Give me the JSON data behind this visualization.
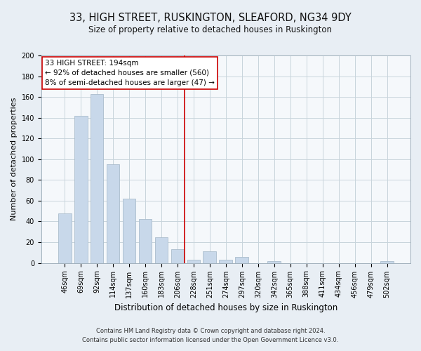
{
  "title": "33, HIGH STREET, RUSKINGTON, SLEAFORD, NG34 9DY",
  "subtitle": "Size of property relative to detached houses in Ruskington",
  "xlabel": "Distribution of detached houses by size in Ruskington",
  "ylabel": "Number of detached properties",
  "bar_labels": [
    "46sqm",
    "69sqm",
    "92sqm",
    "114sqm",
    "137sqm",
    "160sqm",
    "183sqm",
    "206sqm",
    "228sqm",
    "251sqm",
    "274sqm",
    "297sqm",
    "320sqm",
    "342sqm",
    "365sqm",
    "388sqm",
    "411sqm",
    "434sqm",
    "456sqm",
    "479sqm",
    "502sqm"
  ],
  "bar_values": [
    48,
    142,
    163,
    95,
    62,
    42,
    25,
    13,
    3,
    11,
    3,
    6,
    0,
    2,
    0,
    0,
    0,
    0,
    0,
    0,
    2
  ],
  "bar_color": "#c8d8ea",
  "bar_edge_color": "#aabccc",
  "vline_x_bar_index": 7.42,
  "vline_color": "#cc0000",
  "annotation_line1": "33 HIGH STREET: 194sqm",
  "annotation_line2": "← 92% of detached houses are smaller (560)",
  "annotation_line3": "8% of semi-detached houses are larger (47) →",
  "annotation_box_color": "white",
  "annotation_box_edge": "#cc0000",
  "ylim": [
    0,
    200
  ],
  "yticks": [
    0,
    20,
    40,
    60,
    80,
    100,
    120,
    140,
    160,
    180,
    200
  ],
  "footer_line1": "Contains HM Land Registry data © Crown copyright and database right 2024.",
  "footer_line2": "Contains public sector information licensed under the Open Government Licence v3.0.",
  "bg_color": "#e8eef4",
  "plot_bg_color": "#f5f8fb",
  "grid_color": "#c8d4dc",
  "title_fontsize": 10.5,
  "subtitle_fontsize": 8.5,
  "ylabel_fontsize": 8,
  "xlabel_fontsize": 8.5,
  "tick_fontsize": 7,
  "footer_fontsize": 6,
  "annot_fontsize": 7.5
}
